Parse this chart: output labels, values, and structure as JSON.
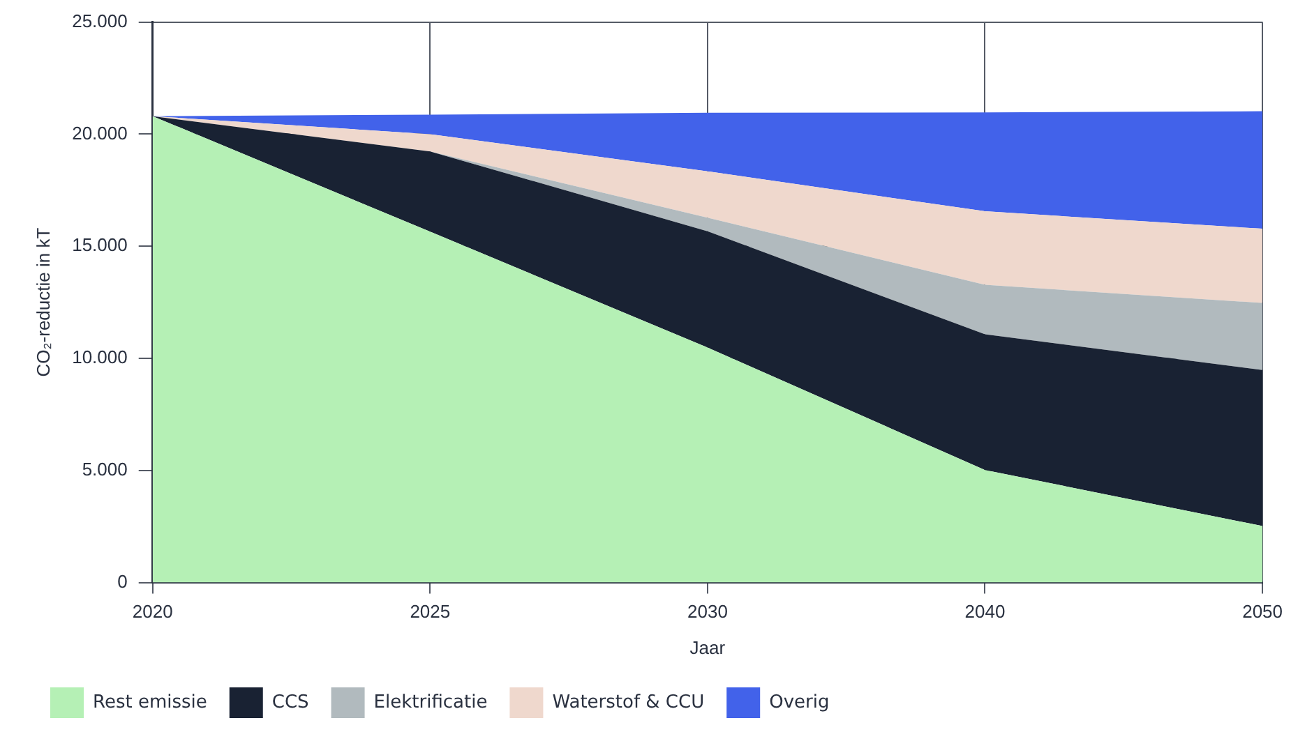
{
  "chart_data": {
    "type": "area",
    "stacked": true,
    "xlabel": "Jaar",
    "ylabel": "CO₂-reductie in kT",
    "categories": [
      "2020",
      "2025",
      "2030",
      "2040",
      "2050"
    ],
    "ylim": [
      0,
      25000
    ],
    "yticks": [
      {
        "value": 0,
        "label": "0"
      },
      {
        "value": 5000,
        "label": "5.000"
      },
      {
        "value": 10000,
        "label": "10.000"
      },
      {
        "value": 15000,
        "label": "15.000"
      },
      {
        "value": 20000,
        "label": "20.000"
      },
      {
        "value": 25000,
        "label": "25.000"
      }
    ],
    "grid": true,
    "legend": "bottom",
    "marker": "none",
    "series": [
      {
        "name": "Rest emissie",
        "color": "#b5f0b5",
        "values": [
          20800,
          15650,
          10480,
          5020,
          2520
        ]
      },
      {
        "name": "CCS",
        "color": "#192233",
        "values": [
          0,
          3580,
          5190,
          6050,
          6960
        ]
      },
      {
        "name": "Elektrificatie",
        "color": "#b1babe",
        "values": [
          0,
          0,
          600,
          2210,
          2990
        ]
      },
      {
        "name": "Waterstof & CCU",
        "color": "#efd8cd",
        "values": [
          0,
          770,
          2070,
          3280,
          3310
        ]
      },
      {
        "name": "Overig",
        "color": "#4262ea",
        "values": [
          0,
          870,
          2610,
          4410,
          5240
        ]
      }
    ]
  }
}
